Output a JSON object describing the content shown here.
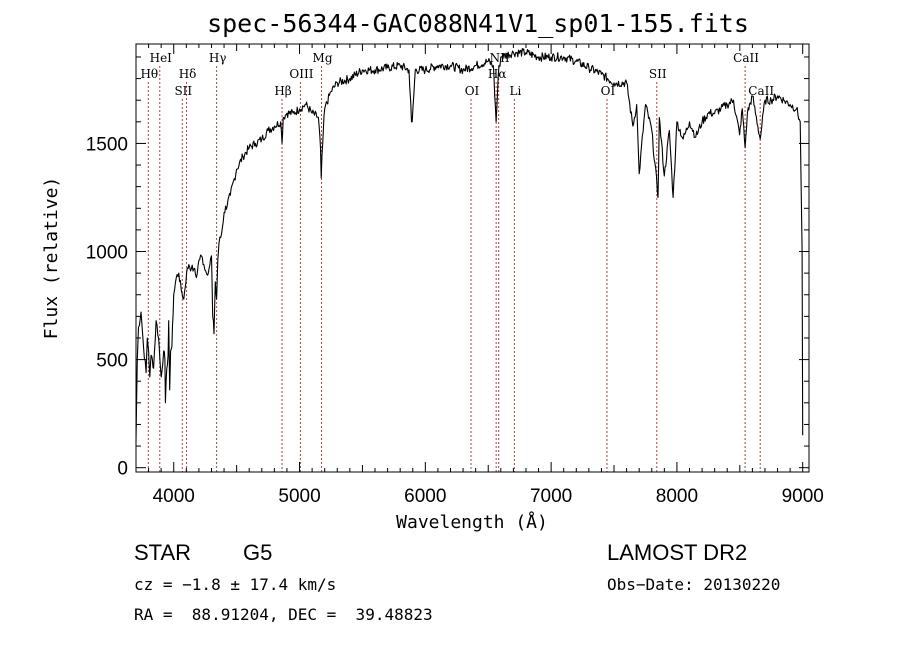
{
  "chart_data": {
    "type": "line",
    "title": "spec-56344-GAC088N41V1_sp01-155.fits",
    "xlabel": "Wavelength (Å)",
    "ylabel": "Flux (relative)",
    "xlim": [
      3700,
      9050
    ],
    "ylim": [
      -20,
      1960
    ],
    "xticks": [
      4000,
      5000,
      6000,
      7000,
      8000,
      9000
    ],
    "yticks": [
      0,
      500,
      1000,
      1500
    ],
    "grid": false,
    "line_markers": [
      {
        "label": "Hθ",
        "x": 3798,
        "row": 2
      },
      {
        "label": "HeI",
        "x": 3889,
        "row": 1
      },
      {
        "label": "Hδ",
        "x": 4102,
        "row": 2
      },
      {
        "label": "SII",
        "x": 4068,
        "row": 3
      },
      {
        "label": "Hγ",
        "x": 4341,
        "row": 1
      },
      {
        "label": "Hβ",
        "x": 4861,
        "row": 3
      },
      {
        "label": "OIII",
        "x": 5007,
        "row": 2
      },
      {
        "label": "Mg",
        "x": 5175,
        "row": 1
      },
      {
        "label": "OI",
        "x": 6363,
        "row": 3
      },
      {
        "label": "NII",
        "x": 6583,
        "row": 1
      },
      {
        "label": "Hα",
        "x": 6563,
        "row": 2
      },
      {
        "label": "Li",
        "x": 6708,
        "row": 3
      },
      {
        "label": "OI",
        "x": 7444,
        "row": 3
      },
      {
        "label": "SII",
        "x": 7840,
        "row": 2
      },
      {
        "label": "CaII",
        "x": 8542,
        "row": 1
      },
      {
        "label": "CaII",
        "x": 8662,
        "row": 3
      }
    ],
    "series": [
      {
        "x": [
          3700,
          3710,
          3720,
          3740,
          3760,
          3780,
          3790,
          3800,
          3810,
          3820,
          3830,
          3840,
          3860,
          3880,
          3890,
          3900,
          3920,
          3930,
          3934,
          3945,
          3955,
          3960,
          3968,
          3975,
          3985,
          4000,
          4020,
          4040,
          4060,
          4080,
          4102,
          4120,
          4140,
          4160,
          4180,
          4200,
          4220,
          4240,
          4260,
          4280,
          4300,
          4310,
          4320,
          4330,
          4341,
          4350,
          4360,
          4380,
          4400,
          4450,
          4500,
          4550,
          4600,
          4650,
          4700,
          4750,
          4800,
          4850,
          4861,
          4870,
          4900,
          4950,
          5000,
          5050,
          5100,
          5150,
          5167,
          5172,
          5184,
          5200,
          5250,
          5300,
          5400,
          5500,
          5600,
          5700,
          5800,
          5870,
          5890,
          5896,
          5920,
          6000,
          6100,
          6200,
          6300,
          6400,
          6500,
          6540,
          6563,
          6580,
          6600,
          6700,
          6800,
          6900,
          7000,
          7100,
          7200,
          7300,
          7400,
          7500,
          7600,
          7650,
          7680,
          7700,
          7750,
          7800,
          7850,
          7860,
          7900,
          7940,
          7970,
          8000,
          8050,
          8100,
          8150,
          8200,
          8250,
          8300,
          8350,
          8400,
          8450,
          8498,
          8520,
          8542,
          8560,
          8600,
          8662,
          8700,
          8750,
          8800,
          8850,
          8900,
          8950,
          8980,
          8995,
          9000
        ],
        "y": [
          120,
          500,
          650,
          720,
          560,
          440,
          600,
          540,
          420,
          520,
          500,
          460,
          680,
          600,
          500,
          420,
          540,
          500,
          300,
          460,
          520,
          680,
          360,
          540,
          560,
          800,
          880,
          900,
          820,
          780,
          900,
          940,
          920,
          920,
          880,
          960,
          980,
          940,
          900,
          920,
          980,
          700,
          620,
          860,
          780,
          960,
          1040,
          1080,
          1180,
          1260,
          1380,
          1440,
          1480,
          1500,
          1520,
          1560,
          1580,
          1600,
          1500,
          1620,
          1640,
          1640,
          1660,
          1680,
          1640,
          1620,
          1480,
          1340,
          1500,
          1660,
          1740,
          1780,
          1800,
          1840,
          1840,
          1850,
          1860,
          1840,
          1600,
          1600,
          1840,
          1840,
          1860,
          1860,
          1840,
          1860,
          1880,
          1860,
          1600,
          1820,
          1900,
          1920,
          1920,
          1900,
          1900,
          1900,
          1880,
          1850,
          1820,
          1780,
          1780,
          1580,
          1680,
          1360,
          1680,
          1560,
          1250,
          1620,
          1350,
          1560,
          1250,
          1600,
          1520,
          1600,
          1530,
          1600,
          1640,
          1640,
          1660,
          1680,
          1700,
          1540,
          1660,
          1480,
          1640,
          1720,
          1520,
          1700,
          1700,
          1720,
          1700,
          1680,
          1660,
          1600,
          1000,
          150
        ]
      }
    ]
  },
  "info": {
    "object_class": "STAR",
    "subclass": "G5",
    "survey": "LAMOST DR2",
    "velocity": "cz = −1.8 ± 17.4 km/s",
    "obs_date": "Obs−Date: 20130220",
    "coords": "RA =  88.91204, DEC =  39.48823"
  },
  "colors": {
    "spectrum": "#000000",
    "marker_lines": "#b04040",
    "axes": "#000000"
  }
}
